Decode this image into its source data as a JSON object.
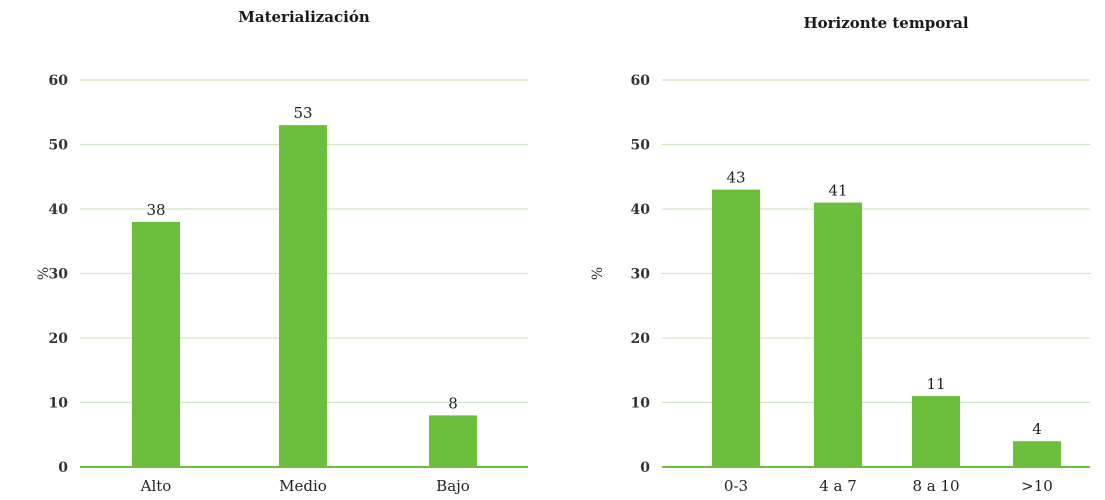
{
  "chart_data": [
    {
      "type": "bar",
      "title": "Materialización",
      "ylabel": "%",
      "categories": [
        "Alto",
        "Medio",
        "Bajo"
      ],
      "values": [
        38,
        53,
        8
      ],
      "ylim": [
        0,
        60
      ],
      "yticks": [
        0,
        10,
        20,
        30,
        40,
        50,
        60
      ],
      "grid": true,
      "color": "#6cbf3c",
      "grid_color": "#cfe8c2"
    },
    {
      "type": "bar",
      "title": "Horizonte temporal",
      "ylabel": "%",
      "categories": [
        "0-3",
        "4 a 7",
        "8 a 10",
        ">10"
      ],
      "values": [
        43,
        41,
        11,
        4
      ],
      "ylim": [
        0,
        60
      ],
      "yticks": [
        0,
        10,
        20,
        30,
        40,
        50,
        60
      ],
      "grid": true,
      "color": "#6cbf3c",
      "grid_color": "#cfe8c2"
    }
  ]
}
